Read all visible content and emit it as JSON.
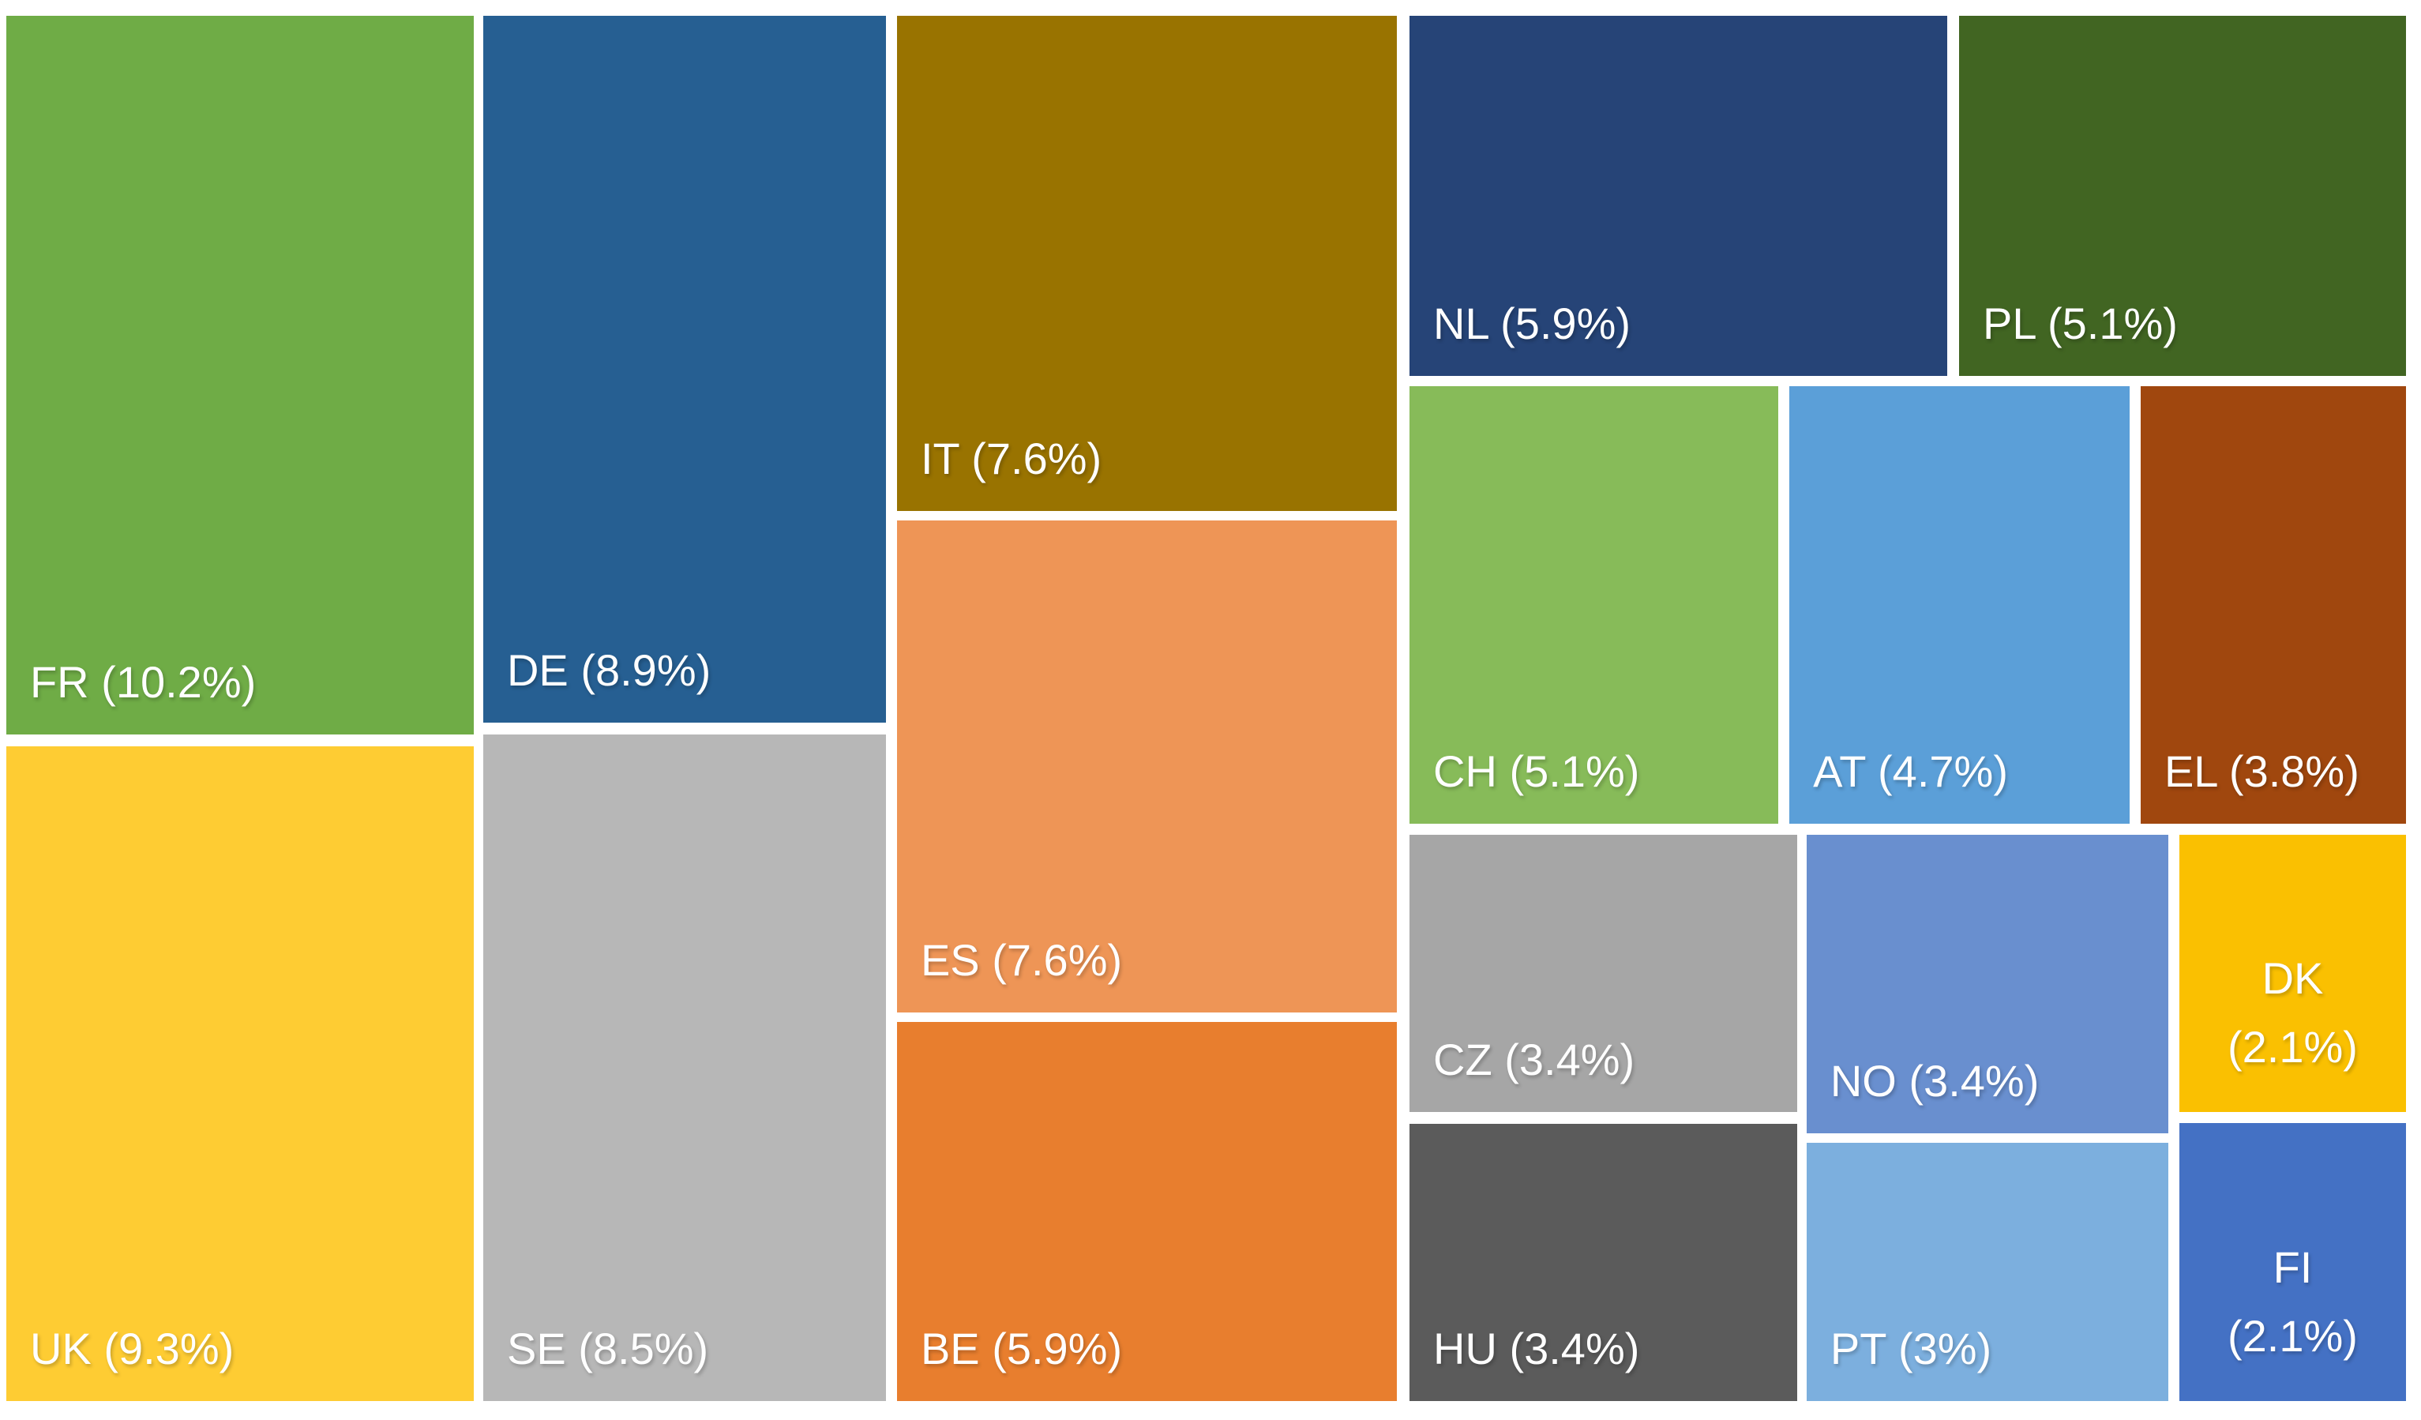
{
  "chart_data": {
    "type": "treemap",
    "title": "",
    "unit": "percent",
    "background": "#FFFFFF",
    "label_text_color": "#FFFFFF",
    "label_position": "bottom-left",
    "legend": "none",
    "categories": [
      "FR",
      "UK",
      "DE",
      "SE",
      "IT",
      "ES",
      "BE",
      "NL",
      "PL",
      "CH",
      "AT",
      "EL",
      "CZ",
      "NO",
      "DK",
      "HU",
      "PT",
      "FI"
    ],
    "values": [
      10.2,
      9.3,
      8.9,
      8.5,
      7.6,
      7.6,
      5.9,
      5.9,
      5.1,
      5.1,
      4.7,
      3.8,
      3.4,
      3.4,
      2.1,
      3.4,
      3.0,
      2.1
    ],
    "items": [
      {
        "code": "FR",
        "label": "FR (10.2%)",
        "value": 10.2,
        "color": "#6FAC46",
        "rect": {
          "x": 0.26,
          "y": 1.11,
          "w": 19.31,
          "h": 50.61
        },
        "align": "left"
      },
      {
        "code": "UK",
        "label": "UK (9.3%)",
        "value": 9.3,
        "color": "#FECC33",
        "rect": {
          "x": 0.26,
          "y": 52.56,
          "w": 19.31,
          "h": 46.11
        },
        "align": "left"
      },
      {
        "code": "DE",
        "label": "DE (8.9%)",
        "value": 8.9,
        "color": "#265F92",
        "rect": {
          "x": 19.96,
          "y": 1.11,
          "w": 16.63,
          "h": 49.78
        },
        "align": "left"
      },
      {
        "code": "SE",
        "label": "SE (8.5%)",
        "value": 8.5,
        "color": "#B7B7B7",
        "rect": {
          "x": 19.96,
          "y": 51.72,
          "w": 16.63,
          "h": 46.94
        },
        "align": "left"
      },
      {
        "code": "IT",
        "label": "IT (7.6%)",
        "value": 7.6,
        "color": "#997300",
        "rect": {
          "x": 37.05,
          "y": 1.11,
          "w": 20.65,
          "h": 34.87
        },
        "align": "left"
      },
      {
        "code": "ES",
        "label": "ES (7.6%)",
        "value": 7.6,
        "color": "#EE9556",
        "rect": {
          "x": 37.05,
          "y": 36.65,
          "w": 20.65,
          "h": 34.65
        },
        "align": "left"
      },
      {
        "code": "BE",
        "label": "BE (5.9%)",
        "value": 5.9,
        "color": "#E87E2E",
        "rect": {
          "x": 37.05,
          "y": 71.97,
          "w": 20.65,
          "h": 26.7
        },
        "align": "left"
      },
      {
        "code": "NL",
        "label": "NL (5.9%)",
        "value": 5.9,
        "color": "#264477",
        "rect": {
          "x": 58.22,
          "y": 1.11,
          "w": 22.21,
          "h": 25.36
        },
        "align": "left"
      },
      {
        "code": "PL",
        "label": "PL (5.1%)",
        "value": 5.1,
        "color": "#416522",
        "rect": {
          "x": 80.92,
          "y": 1.11,
          "w": 18.46,
          "h": 25.36
        },
        "align": "left"
      },
      {
        "code": "CH",
        "label": "CH (5.1%)",
        "value": 5.1,
        "color": "#87BB59",
        "rect": {
          "x": 58.22,
          "y": 27.2,
          "w": 15.23,
          "h": 30.81
        },
        "align": "left"
      },
      {
        "code": "AT",
        "label": "AT (4.7%)",
        "value": 4.7,
        "color": "#5B9FD8",
        "rect": {
          "x": 73.91,
          "y": 27.2,
          "w": 14.06,
          "h": 30.81
        },
        "align": "left"
      },
      {
        "code": "EL",
        "label": "EL (3.8%)",
        "value": 3.8,
        "color": "#A0470E",
        "rect": {
          "x": 88.42,
          "y": 27.2,
          "w": 10.96,
          "h": 30.81
        },
        "align": "left"
      },
      {
        "code": "CZ",
        "label": "CZ (3.4%)",
        "value": 3.4,
        "color": "#A6A6A6",
        "rect": {
          "x": 58.22,
          "y": 58.79,
          "w": 16.01,
          "h": 19.52
        },
        "align": "left"
      },
      {
        "code": "NO",
        "label": "NO (3.4%)",
        "value": 3.4,
        "color": "#698FCF",
        "rect": {
          "x": 74.62,
          "y": 58.79,
          "w": 14.94,
          "h": 21.02
        },
        "align": "left"
      },
      {
        "code": "DK",
        "label": "DK (2.1%)",
        "value": 2.1,
        "color": "#FAC001",
        "rect": {
          "x": 90.02,
          "y": 58.79,
          "w": 9.36,
          "h": 19.52
        },
        "align": "center",
        "label_lines": [
          "DK",
          "(2.1%)"
        ]
      },
      {
        "code": "HU",
        "label": "HU (3.4%)",
        "value": 3.4,
        "color": "#5B5B5B",
        "rect": {
          "x": 58.22,
          "y": 79.14,
          "w": 16.01,
          "h": 19.52
        },
        "align": "left"
      },
      {
        "code": "PT",
        "label": "PT (3%)",
        "value": 3.0,
        "color": "#7CAFDE",
        "rect": {
          "x": 74.62,
          "y": 80.48,
          "w": 14.94,
          "h": 18.19
        },
        "align": "left"
      },
      {
        "code": "FI",
        "label": "FI (2.1%)",
        "value": 2.1,
        "color": "#4471C4",
        "rect": {
          "x": 90.02,
          "y": 79.09,
          "w": 9.36,
          "h": 19.58
        },
        "align": "center",
        "label_lines": [
          "FI",
          "(2.1%)"
        ]
      }
    ]
  }
}
